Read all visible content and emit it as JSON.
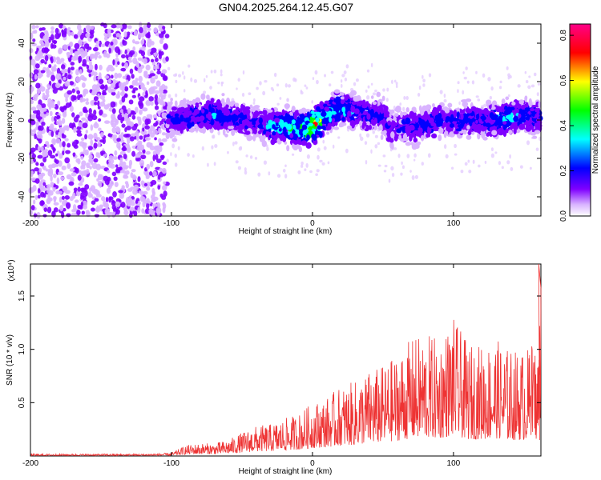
{
  "chart_data": [
    {
      "type": "heatmap",
      "title": "GN04.2025.264.12.45.G07",
      "xlabel": "Height of straight line (km)",
      "ylabel": "Frequency (Hz)",
      "xlim": [
        -200,
        162
      ],
      "ylim": [
        -50,
        50
      ],
      "xticks": [
        -200,
        -100,
        0,
        100
      ],
      "xtick_labels": [
        "-200",
        "-100",
        "0",
        "100"
      ],
      "yticks": [
        40,
        20,
        0,
        -20,
        -40
      ],
      "ytick_labels": [
        "40",
        "20",
        "0",
        "-20",
        "-40"
      ],
      "colorbar": {
        "label": "Normalized spectral amplitude",
        "range": [
          0.0,
          0.85
        ],
        "ticks": [
          0.0,
          0.2,
          0.4,
          0.6,
          0.8
        ],
        "tick_labels": [
          "0.0",
          "0.2",
          "0.4",
          "0.6",
          "0.8"
        ],
        "colors": [
          "#ffffff",
          "#d9b3ff",
          "#7f00ff",
          "#0000ff",
          "#00ffff",
          "#00ff00",
          "#ffff00",
          "#ff0000",
          "#ff0088"
        ]
      },
      "noise_region_x": [
        -200,
        -103
      ],
      "ridge": {
        "x": [
          -103,
          -90,
          -80,
          -70,
          -60,
          -50,
          -40,
          -30,
          -20,
          -10,
          -5,
          0,
          5,
          10,
          15,
          20,
          30,
          40,
          50,
          55,
          60,
          70,
          80,
          90,
          100,
          110,
          120,
          130,
          140,
          150,
          162
        ],
        "center_hz": [
          0,
          1,
          2,
          3,
          1,
          0,
          -2,
          -3,
          -3,
          -4,
          -5,
          -3,
          -1,
          2,
          5,
          6,
          4,
          3,
          2,
          -5,
          -3,
          -4,
          -2,
          0,
          -1,
          0,
          -1,
          0,
          1,
          2,
          1
        ],
        "peak_amp": [
          0.25,
          0.3,
          0.3,
          0.35,
          0.3,
          0.3,
          0.25,
          0.4,
          0.45,
          0.45,
          0.6,
          0.75,
          0.6,
          0.45,
          0.45,
          0.4,
          0.35,
          0.3,
          0.3,
          0.25,
          0.25,
          0.3,
          0.3,
          0.3,
          0.3,
          0.3,
          0.35,
          0.35,
          0.4,
          0.35,
          0.3
        ]
      }
    },
    {
      "type": "line",
      "xlabel": "Height of straight line (km)",
      "ylabel": "SNR (10 * v/v)",
      "scale_label": "(x10⁴)",
      "xlim": [
        -200,
        162
      ],
      "ylim": [
        0,
        1.8
      ],
      "xticks": [
        -200,
        -100,
        0,
        100
      ],
      "xtick_labels": [
        "-200",
        "-100",
        "0",
        "100"
      ],
      "yticks": [
        0.5,
        1.0,
        1.5
      ],
      "ytick_labels": [
        "0.5",
        "1.0",
        "1.5"
      ],
      "color": "#ee3333",
      "envelope": {
        "x": [
          -200,
          -120,
          -100,
          -90,
          -80,
          -70,
          -60,
          -50,
          -40,
          -30,
          -20,
          -10,
          0,
          10,
          20,
          30,
          40,
          50,
          60,
          70,
          80,
          90,
          100,
          110,
          120,
          130,
          140,
          150,
          160,
          162
        ],
        "max": [
          0.02,
          0.02,
          0.03,
          0.1,
          0.12,
          0.12,
          0.15,
          0.22,
          0.28,
          0.3,
          0.35,
          0.4,
          0.5,
          0.55,
          0.65,
          0.7,
          0.8,
          0.85,
          0.95,
          1.1,
          1.15,
          1.1,
          1.3,
          1.05,
          1.05,
          1.1,
          1.0,
          1.0,
          1.05,
          1.8
        ]
      }
    }
  ]
}
